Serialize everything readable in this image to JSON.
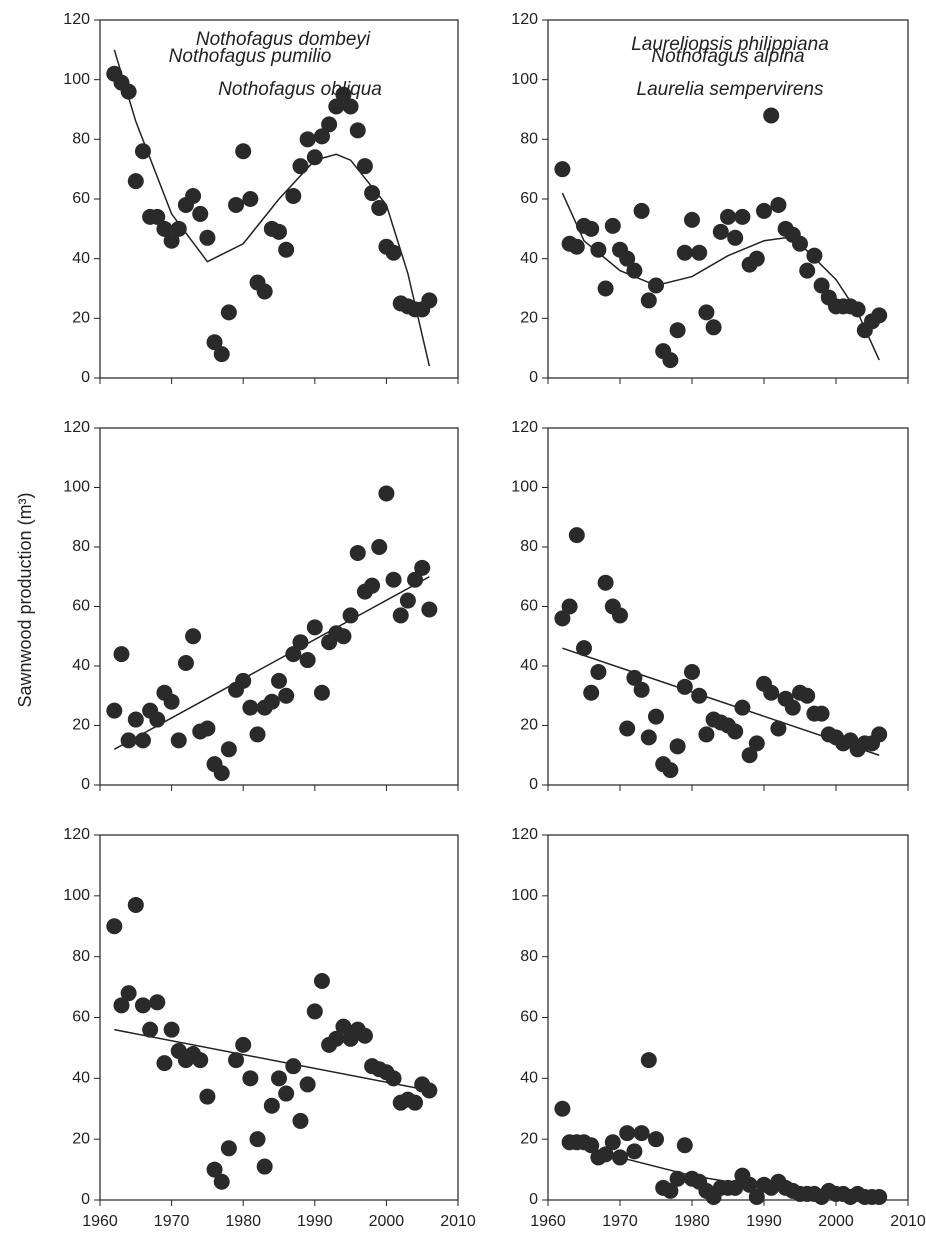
{
  "y_axis_label": "Sawnwood production (m³)",
  "chart_data": [
    {
      "type": "scatter",
      "title": "Nothofagus dombeyi",
      "color": "#2a2a2a",
      "show_xtick_labels": false,
      "x": [
        1962,
        1963,
        1964,
        1965,
        1966,
        1967,
        1968,
        1969,
        1970,
        1971,
        1972,
        1973,
        1974,
        1975,
        1976,
        1977,
        1978,
        1979,
        1980,
        1981,
        1982,
        1983,
        1984,
        1985,
        1986,
        1987,
        1988,
        1989,
        1990,
        1991,
        1992,
        1993,
        1994,
        1995,
        1996,
        1997,
        1998,
        1999,
        2000,
        2001,
        2002,
        2003,
        2004,
        2005,
        2006
      ],
      "values": [
        102,
        99,
        96,
        66,
        76,
        54,
        54,
        50,
        46,
        50,
        58,
        61,
        55,
        47,
        12,
        8,
        22,
        58,
        76,
        60,
        32,
        29,
        50,
        49,
        43,
        61,
        71,
        80,
        74,
        81,
        85,
        91,
        95,
        91,
        83,
        71,
        62,
        57,
        44,
        42,
        25,
        24,
        23,
        23,
        26
      ],
      "trend": {
        "x": [
          1962,
          1965,
          1970,
          1975,
          1980,
          1985,
          1990,
          1993,
          1995,
          2000,
          2003,
          2006
        ],
        "values": [
          110,
          86,
          55,
          39,
          45,
          60,
          73,
          75,
          73,
          58,
          35,
          4
        ]
      },
      "xlim": [
        1960,
        2010
      ],
      "ylim": [
        0,
        120
      ],
      "xticks": [
        1960,
        1970,
        1980,
        1990,
        2000,
        2010
      ],
      "yticks": [
        0,
        20,
        40,
        60,
        80,
        100,
        120
      ]
    },
    {
      "type": "scatter",
      "title": "Laureliopsis philippiana",
      "color": "#2a2a2a",
      "show_xtick_labels": false,
      "x": [
        1962,
        1963,
        1964,
        1965,
        1966,
        1967,
        1968,
        1969,
        1970,
        1971,
        1972,
        1973,
        1974,
        1975,
        1976,
        1977,
        1978,
        1979,
        1980,
        1981,
        1982,
        1983,
        1984,
        1985,
        1986,
        1987,
        1988,
        1989,
        1990,
        1991,
        1992,
        1993,
        1994,
        1995,
        1996,
        1997,
        1998,
        1999,
        2000,
        2001,
        2002,
        2003,
        2004,
        2005,
        2006
      ],
      "values": [
        70,
        45,
        44,
        51,
        50,
        43,
        30,
        51,
        43,
        40,
        36,
        56,
        26,
        31,
        9,
        6,
        16,
        42,
        53,
        42,
        22,
        17,
        49,
        54,
        47,
        54,
        38,
        40,
        56,
        88,
        58,
        50,
        48,
        45,
        36,
        41,
        31,
        27,
        24,
        24,
        24,
        23,
        16,
        19,
        21
      ],
      "trend": {
        "x": [
          1962,
          1965,
          1970,
          1975,
          1980,
          1985,
          1990,
          1993,
          1995,
          2000,
          2003,
          2006
        ],
        "values": [
          62,
          46,
          36,
          31,
          34,
          41,
          46,
          47,
          45,
          33,
          22,
          6
        ]
      },
      "xlim": [
        1960,
        2010
      ],
      "ylim": [
        0,
        120
      ],
      "xticks": [
        1960,
        1970,
        1980,
        1990,
        2000,
        2010
      ],
      "yticks": [
        0,
        20,
        40,
        60,
        80,
        100,
        120
      ]
    },
    {
      "type": "scatter",
      "title": "Nothofagus pumilio",
      "color": "#2a2a2a",
      "show_xtick_labels": false,
      "x": [
        1962,
        1963,
        1964,
        1965,
        1966,
        1967,
        1968,
        1969,
        1970,
        1971,
        1972,
        1973,
        1974,
        1975,
        1976,
        1977,
        1978,
        1979,
        1980,
        1981,
        1982,
        1983,
        1984,
        1985,
        1986,
        1987,
        1988,
        1989,
        1990,
        1991,
        1992,
        1993,
        1994,
        1995,
        1996,
        1997,
        1998,
        1999,
        2000,
        2001,
        2002,
        2003,
        2004,
        2005,
        2006
      ],
      "values": [
        25,
        44,
        15,
        22,
        15,
        25,
        22,
        31,
        28,
        15,
        41,
        50,
        18,
        19,
        7,
        4,
        12,
        32,
        35,
        26,
        17,
        26,
        28,
        35,
        30,
        44,
        48,
        42,
        53,
        31,
        48,
        51,
        50,
        57,
        78,
        65,
        67,
        80,
        98,
        69,
        57,
        62,
        69,
        73,
        59
      ],
      "trend": {
        "x": [
          1962,
          2006
        ],
        "values": [
          12,
          70
        ]
      },
      "xlim": [
        1960,
        2010
      ],
      "ylim": [
        0,
        120
      ],
      "xticks": [
        1960,
        1970,
        1980,
        1990,
        2000,
        2010
      ],
      "yticks": [
        0,
        20,
        40,
        60,
        80,
        100,
        120
      ]
    },
    {
      "type": "scatter",
      "title": "Nothofagus alpina",
      "color": "#2a2a2a",
      "show_xtick_labels": false,
      "x": [
        1962,
        1963,
        1964,
        1965,
        1966,
        1967,
        1968,
        1969,
        1970,
        1971,
        1972,
        1973,
        1974,
        1975,
        1976,
        1977,
        1978,
        1979,
        1980,
        1981,
        1982,
        1983,
        1984,
        1985,
        1986,
        1987,
        1988,
        1989,
        1990,
        1991,
        1992,
        1993,
        1994,
        1995,
        1996,
        1997,
        1998,
        1999,
        2000,
        2001,
        2002,
        2003,
        2004,
        2005,
        2006
      ],
      "values": [
        56,
        60,
        84,
        46,
        31,
        38,
        68,
        60,
        57,
        19,
        36,
        32,
        16,
        23,
        7,
        5,
        13,
        33,
        38,
        30,
        17,
        22,
        21,
        20,
        18,
        26,
        10,
        14,
        34,
        31,
        19,
        29,
        26,
        31,
        30,
        24,
        24,
        17,
        16,
        14,
        15,
        12,
        14,
        14,
        17
      ],
      "trend": {
        "x": [
          1962,
          2006
        ],
        "values": [
          46,
          10
        ]
      },
      "xlim": [
        1960,
        2010
      ],
      "ylim": [
        0,
        120
      ],
      "xticks": [
        1960,
        1970,
        1980,
        1990,
        2000,
        2010
      ],
      "yticks": [
        0,
        20,
        40,
        60,
        80,
        100,
        120
      ]
    },
    {
      "type": "scatter",
      "title": "Nothofagus obliqua",
      "color": "#2a2a2a",
      "show_xtick_labels": true,
      "x": [
        1962,
        1963,
        1964,
        1965,
        1966,
        1967,
        1968,
        1969,
        1970,
        1971,
        1972,
        1973,
        1974,
        1975,
        1976,
        1977,
        1978,
        1979,
        1980,
        1981,
        1982,
        1983,
        1984,
        1985,
        1986,
        1987,
        1988,
        1989,
        1990,
        1991,
        1992,
        1993,
        1994,
        1995,
        1996,
        1997,
        1998,
        1999,
        2000,
        2001,
        2002,
        2003,
        2004,
        2005,
        2006
      ],
      "values": [
        90,
        64,
        68,
        97,
        64,
        56,
        65,
        45,
        56,
        49,
        46,
        48,
        46,
        34,
        10,
        6,
        17,
        46,
        51,
        40,
        20,
        11,
        31,
        40,
        35,
        44,
        26,
        38,
        62,
        72,
        51,
        53,
        57,
        53,
        56,
        54,
        44,
        43,
        42,
        40,
        32,
        33,
        32,
        38,
        36
      ],
      "trend": {
        "x": [
          1962,
          2006
        ],
        "values": [
          56,
          36
        ]
      },
      "xlim": [
        1960,
        2010
      ],
      "ylim": [
        0,
        120
      ],
      "xticks": [
        1960,
        1970,
        1980,
        1990,
        2000,
        2010
      ],
      "yticks": [
        0,
        20,
        40,
        60,
        80,
        100,
        120
      ]
    },
    {
      "type": "scatter",
      "title": "Laurelia sempervirens",
      "color": "#2a2a2a",
      "show_xtick_labels": true,
      "x": [
        1962,
        1963,
        1964,
        1965,
        1966,
        1967,
        1968,
        1969,
        1970,
        1971,
        1972,
        1973,
        1974,
        1975,
        1976,
        1977,
        1978,
        1979,
        1980,
        1981,
        1982,
        1983,
        1984,
        1985,
        1986,
        1987,
        1988,
        1989,
        1990,
        1991,
        1992,
        1993,
        1994,
        1995,
        1996,
        1997,
        1998,
        1999,
        2000,
        2001,
        2002,
        2003,
        2004,
        2005,
        2006
      ],
      "values": [
        30,
        19,
        19,
        19,
        18,
        14,
        15,
        19,
        14,
        22,
        16,
        22,
        46,
        20,
        4,
        3,
        7,
        18,
        7,
        6,
        3,
        1,
        4,
        4,
        4,
        8,
        5,
        1,
        5,
        4,
        6,
        4,
        3,
        2,
        2,
        2,
        1,
        3,
        2,
        2,
        1,
        2,
        1,
        1,
        1
      ],
      "trend": {
        "x": [
          1962,
          1970,
          1980,
          1990,
          2000,
          2006
        ],
        "values": [
          20,
          14,
          8,
          4,
          2,
          1
        ]
      },
      "xlim": [
        1960,
        2010
      ],
      "ylim": [
        0,
        120
      ],
      "xticks": [
        1960,
        1970,
        1980,
        1990,
        2000,
        2010
      ],
      "yticks": [
        0,
        20,
        40,
        60,
        80,
        100,
        120
      ]
    }
  ]
}
